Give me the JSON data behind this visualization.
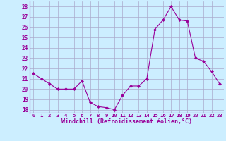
{
  "x": [
    0,
    1,
    2,
    3,
    4,
    5,
    6,
    7,
    8,
    9,
    10,
    11,
    12,
    13,
    14,
    15,
    16,
    17,
    18,
    19,
    20,
    21,
    22,
    23
  ],
  "y": [
    21.5,
    21.0,
    20.5,
    20.0,
    20.0,
    20.0,
    20.8,
    18.7,
    18.3,
    18.2,
    18.0,
    19.4,
    20.3,
    20.3,
    21.0,
    25.8,
    26.7,
    28.0,
    26.7,
    26.6,
    23.0,
    22.7,
    21.7,
    20.5
  ],
  "line_color": "#990099",
  "marker": "D",
  "marker_size": 2,
  "bg_color": "#cceeff",
  "grid_color": "#aaaacc",
  "xlabel": "Windchill (Refroidissement éolien,°C)",
  "xlabel_color": "#990099",
  "ylabel_ticks": [
    18,
    19,
    20,
    21,
    22,
    23,
    24,
    25,
    26,
    27,
    28
  ],
  "xtick_labels": [
    "0",
    "1",
    "2",
    "3",
    "4",
    "5",
    "6",
    "7",
    "8",
    "9",
    "10",
    "11",
    "12",
    "13",
    "14",
    "15",
    "16",
    "17",
    "18",
    "19",
    "20",
    "21",
    "22",
    "23"
  ],
  "ylim": [
    17.7,
    28.5
  ],
  "xlim": [
    -0.5,
    23.5
  ]
}
